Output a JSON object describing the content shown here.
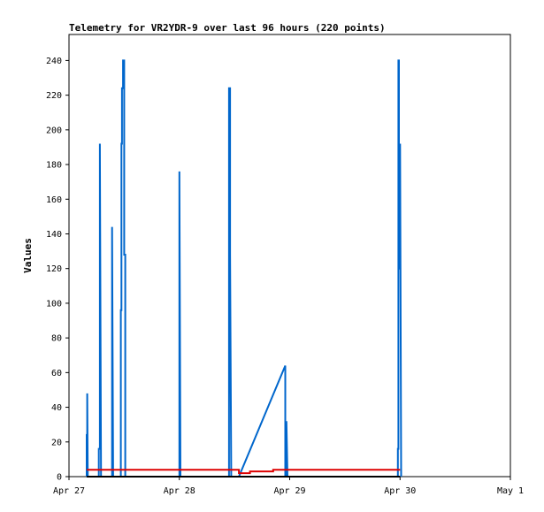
{
  "chart_data": {
    "type": "line",
    "title": "Telemetry for VR2YDR-9 over last 96 hours (220 points)",
    "xlabel": "",
    "ylabel": "Values",
    "ylim": [
      0,
      255
    ],
    "xlim": [
      27.0,
      31.0
    ],
    "x_ticks": [
      {
        "value": 27.0,
        "label": "Apr 27"
      },
      {
        "value": 28.0,
        "label": "Apr 28"
      },
      {
        "value": 29.0,
        "label": "Apr 29"
      },
      {
        "value": 30.0,
        "label": "Apr 30"
      },
      {
        "value": 31.0,
        "label": "May 1"
      }
    ],
    "y_ticks": [
      0,
      20,
      40,
      60,
      80,
      100,
      120,
      140,
      160,
      180,
      200,
      220,
      240
    ],
    "grid": false,
    "series": [
      {
        "color": "#0066cc",
        "x": [
          27.16,
          27.16,
          27.165,
          27.165,
          27.17,
          27.27,
          27.27,
          27.28,
          27.28,
          27.29,
          27.39,
          27.39,
          27.4,
          27.47,
          27.47,
          27.475,
          27.475,
          27.48,
          27.48,
          27.49,
          27.49,
          27.5,
          27.5,
          27.51,
          27.51,
          28.0,
          28.0,
          28.01,
          28.45,
          28.45,
          28.46,
          28.46,
          28.47,
          28.54,
          28.96,
          28.96,
          28.97,
          28.97,
          28.98,
          29.98,
          29.98,
          29.985,
          29.985,
          29.99,
          29.99,
          30.0,
          30.0,
          30.01
        ],
        "y": [
          0,
          24,
          24,
          48,
          0,
          0,
          16,
          16,
          192,
          0,
          0,
          144,
          0,
          0,
          96,
          96,
          192,
          192,
          224,
          224,
          240,
          240,
          128,
          128,
          0,
          0,
          176,
          0,
          0,
          224,
          224,
          128,
          0,
          0,
          64,
          0,
          0,
          32,
          0,
          0,
          16,
          16,
          240,
          240,
          120,
          120,
          192,
          0
        ]
      },
      {
        "color": "#dd0000",
        "x": [
          27.16,
          28.54,
          28.54,
          28.64,
          28.64,
          28.85,
          28.85,
          30.0
        ],
        "y": [
          4,
          4,
          2,
          2,
          3,
          3,
          4,
          4
        ]
      },
      {
        "color": "#000000",
        "x": [
          27.16,
          30.0
        ],
        "y": [
          0,
          0
        ]
      }
    ]
  }
}
